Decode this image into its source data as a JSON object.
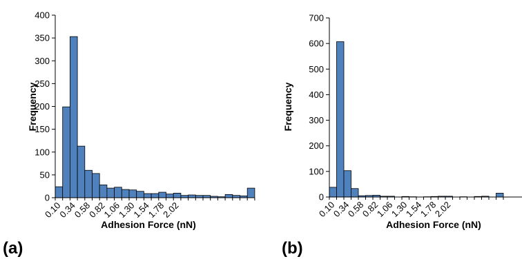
{
  "chart_data": [
    {
      "type": "bar",
      "panel_label": "(a)",
      "xlabel": "Adhesion Force (nN)",
      "ylabel": "Frequency",
      "ylim": [
        0,
        400
      ],
      "yticks": [
        "0",
        "50",
        "100",
        "150",
        "200",
        "250",
        "300",
        "350",
        "400"
      ],
      "xtick_labels": [
        "0.10",
        "0.34",
        "0.58",
        "0.82",
        "1.06",
        "1.30",
        "1.54",
        "1.78",
        "2.02"
      ],
      "bar_color": "#4F81BD",
      "grid": false,
      "values": [
        24,
        199,
        353,
        113,
        60,
        53,
        28,
        21,
        23,
        18,
        17,
        14,
        9,
        9,
        12,
        8,
        10,
        5,
        6,
        5,
        5,
        3,
        2,
        7,
        5,
        4,
        21
      ]
    },
    {
      "type": "bar",
      "panel_label": "(b)",
      "xlabel": "Adhesion Force (nN)",
      "ylabel": "Frequency",
      "ylim": [
        0,
        700
      ],
      "yticks": [
        "0",
        "100",
        "200",
        "300",
        "400",
        "500",
        "600",
        "700"
      ],
      "xtick_labels": [
        "0.10",
        "0.34",
        "0.58",
        "0.82",
        "1.06",
        "1.30",
        "1.54",
        "1.78",
        "2.02"
      ],
      "bar_color": "#4F81BD",
      "grid": false,
      "values": [
        38,
        607,
        103,
        33,
        5,
        6,
        7,
        3,
        3,
        0,
        2,
        1,
        0,
        1,
        2,
        3,
        3,
        0,
        1,
        0,
        2,
        3,
        0,
        15
      ]
    }
  ]
}
